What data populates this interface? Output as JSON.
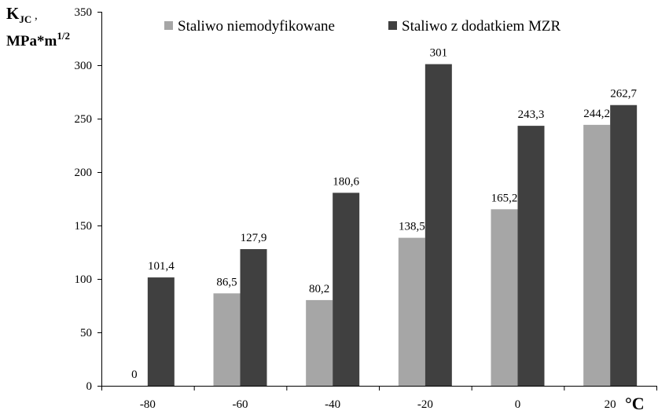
{
  "chart_data": {
    "type": "bar",
    "categories": [
      "-80",
      "-60",
      "-40",
      "-20",
      "0",
      "20"
    ],
    "series": [
      {
        "name": "Staliwo niemodyfikowane",
        "color": "#a6a6a6",
        "values": [
          0,
          86.5,
          80.2,
          138.5,
          165.2,
          244.2
        ],
        "labels": [
          "0",
          "86,5",
          "80,2",
          "138,5",
          "165,2",
          "244,2"
        ]
      },
      {
        "name": "Staliwo z dodatkiem MZR",
        "color": "#404040",
        "values": [
          101.4,
          127.9,
          180.6,
          301,
          243.3,
          262.7
        ],
        "labels": [
          "101,4",
          "127,9",
          "180,6",
          "301",
          "243,3",
          "262,7"
        ]
      }
    ],
    "ylabel": {
      "main": "K",
      "sub": "JC",
      "after_sub": " ,",
      "line2": "MPa*m",
      "sup": "1/2"
    },
    "xunit": "°C",
    "ylim": [
      0,
      350
    ],
    "yticks": [
      "0",
      "50",
      "100",
      "150",
      "200",
      "250",
      "300",
      "350"
    ],
    "grid": false,
    "legend": "top"
  }
}
